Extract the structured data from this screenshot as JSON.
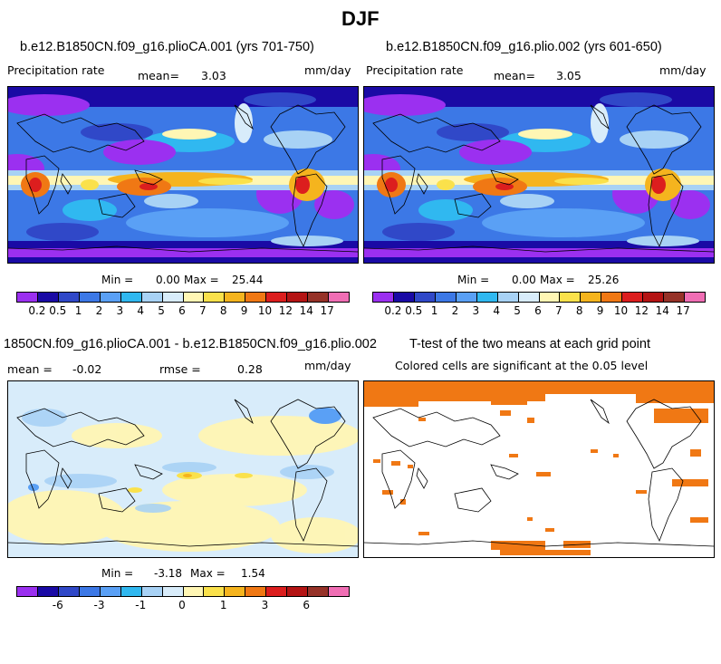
{
  "header": {
    "title": "DJF"
  },
  "panels": {
    "p1": {
      "title": "b.e12.B1850CN.f09_g16.plioCA.001 (yrs 701-750)",
      "variable": "Precipitation rate",
      "mean_label": "mean=",
      "mean_value": "3.03",
      "units": "mm/day",
      "min_label": "Min =",
      "min_value": "0.00",
      "max_label": "Max =",
      "max_value": "25.44"
    },
    "p2": {
      "title": "b.e12.B1850CN.f09_g16.plio.002 (yrs 601-650)",
      "variable": "Precipitation rate",
      "mean_label": "mean=",
      "mean_value": "3.05",
      "units": "mm/day",
      "min_label": "Min =",
      "min_value": "0.00",
      "max_label": "Max =",
      "max_value": "25.26"
    },
    "p3": {
      "title": "1850CN.f09_g16.plioCA.001 - b.e12.B1850CN.f09_g16.plio.002",
      "mean_label": "mean =",
      "mean_value": "-0.02",
      "rmse_label": "rmse =",
      "rmse_value": "0.28",
      "units": "mm/day",
      "min_label": "Min =",
      "min_value": "-3.18",
      "max_label": "Max =",
      "max_value": "1.54"
    },
    "p4": {
      "title": "T-test of the two means at each grid point",
      "subtitle": "Colored cells are significant at the 0.05 level"
    }
  },
  "colorbars": {
    "precip": {
      "colors": [
        "#9b30f0",
        "#1a0aa5",
        "#3048c8",
        "#3c78e6",
        "#5aa0f5",
        "#30b8f0",
        "#a8d2f5",
        "#d8ecfa",
        "#fff6b4",
        "#fae14b",
        "#f5b41e",
        "#f07814",
        "#dc1e1e",
        "#b41414",
        "#963228",
        "#f06eb4"
      ],
      "labels": [
        "0.2",
        "0.5",
        "1",
        "2",
        "3",
        "4",
        "5",
        "6",
        "7",
        "8",
        "9",
        "10",
        "12",
        "14",
        "17"
      ]
    },
    "diff": {
      "colors": [
        "#9b30f0",
        "#1a0aa5",
        "#3048c8",
        "#3c78e6",
        "#5aa0f5",
        "#30b8f0",
        "#a8d2f5",
        "#d8ecfa",
        "#fff6b4",
        "#fae14b",
        "#f5b41e",
        "#f07814",
        "#dc1e1e",
        "#b41414",
        "#963228",
        "#f06eb4"
      ],
      "labels": [
        "-6",
        "-3",
        "-1",
        "0",
        "1",
        "3",
        "6"
      ]
    }
  },
  "chart_data": [
    {
      "type": "heatmap",
      "title": "b.e12.B1850CN.f09_g16.plioCA.001 (yrs 701-750)",
      "variable": "Precipitation rate",
      "units": "mm/day",
      "mean": 3.03,
      "min": 0.0,
      "max": 25.44,
      "levels": [
        0.2,
        0.5,
        1,
        2,
        3,
        4,
        5,
        6,
        7,
        8,
        9,
        10,
        12,
        14,
        17
      ]
    },
    {
      "type": "heatmap",
      "title": "b.e12.B1850CN.f09_g16.plio.002 (yrs 601-650)",
      "variable": "Precipitation rate",
      "units": "mm/day",
      "mean": 3.05,
      "min": 0.0,
      "max": 25.26,
      "levels": [
        0.2,
        0.5,
        1,
        2,
        3,
        4,
        5,
        6,
        7,
        8,
        9,
        10,
        12,
        14,
        17
      ]
    },
    {
      "type": "heatmap",
      "title": "1850CN.f09_g16.plioCA.001 - b.e12.B1850CN.f09_g16.plio.002",
      "units": "mm/day",
      "mean": -0.02,
      "rmse": 0.28,
      "min": -3.18,
      "max": 1.54,
      "levels": [
        -6,
        -3,
        -1,
        0,
        1,
        3,
        6
      ]
    },
    {
      "type": "heatmap",
      "title": "T-test of the two means at each grid point",
      "subtitle": "Colored cells are significant at the 0.05 level",
      "significance_level": 0.05,
      "color": "#f07814"
    }
  ]
}
